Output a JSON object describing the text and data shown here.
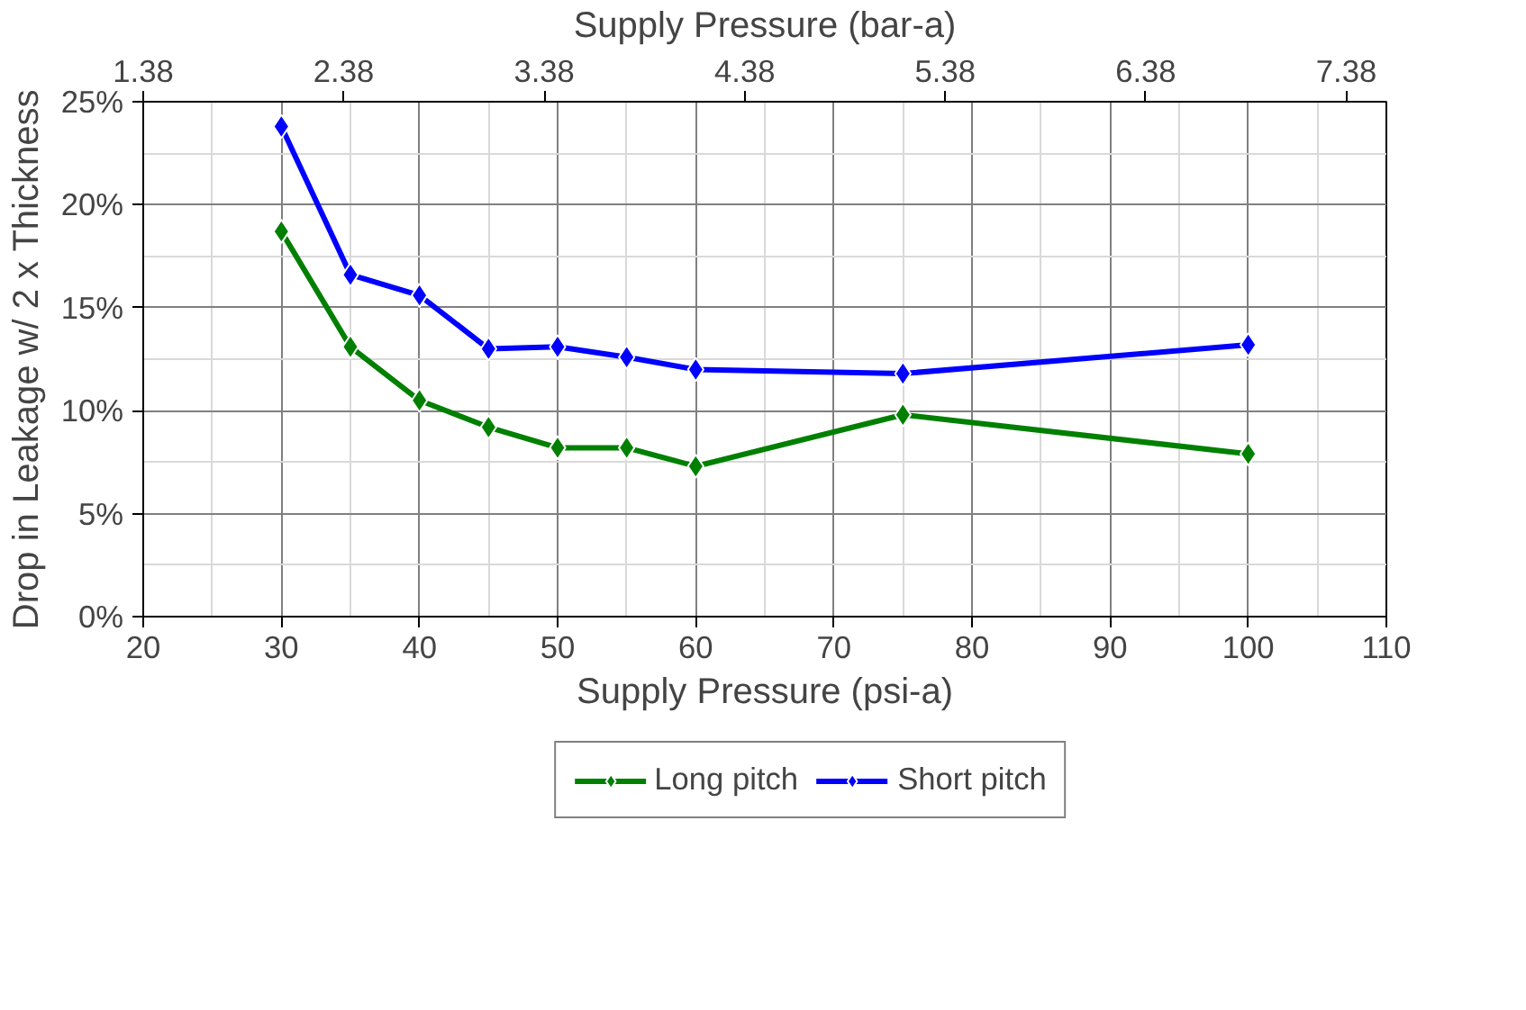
{
  "chart_data": {
    "type": "line",
    "xlabel": "Supply Pressure (psi-a)",
    "x2label": "Supply Pressure (bar-a)",
    "ylabel": "Drop in Leakage w/ 2 x Thickness",
    "x": [
      30,
      35,
      40,
      45,
      50,
      55,
      60,
      75,
      100
    ],
    "series": [
      {
        "name": "Long pitch",
        "color": "#008000",
        "values": [
          18.7,
          13.1,
          10.5,
          9.2,
          8.2,
          8.2,
          7.3,
          9.8,
          7.9
        ]
      },
      {
        "name": "Short pitch",
        "color": "#0000ff",
        "values": [
          23.8,
          16.6,
          15.6,
          13.0,
          13.1,
          12.6,
          12.0,
          11.8,
          13.2
        ]
      }
    ],
    "xlim": [
      20,
      110
    ],
    "xticks": [
      20,
      30,
      40,
      50,
      60,
      70,
      80,
      90,
      100,
      110
    ],
    "x2lim": [
      1.38,
      7.58
    ],
    "x2ticks": [
      1.38,
      2.38,
      3.38,
      4.38,
      5.38,
      6.38,
      7.38
    ],
    "ylim": [
      0,
      25
    ],
    "yticks": [
      {
        "value": 0,
        "label": "0%"
      },
      {
        "value": 5,
        "label": "5%"
      },
      {
        "value": 10,
        "label": "10%"
      },
      {
        "value": 15,
        "label": "15%"
      },
      {
        "value": 20,
        "label": "20%"
      },
      {
        "value": 25,
        "label": "25%"
      }
    ],
    "grid": true,
    "legend": "bottom",
    "marker": "diamond",
    "line_style": "solid"
  }
}
